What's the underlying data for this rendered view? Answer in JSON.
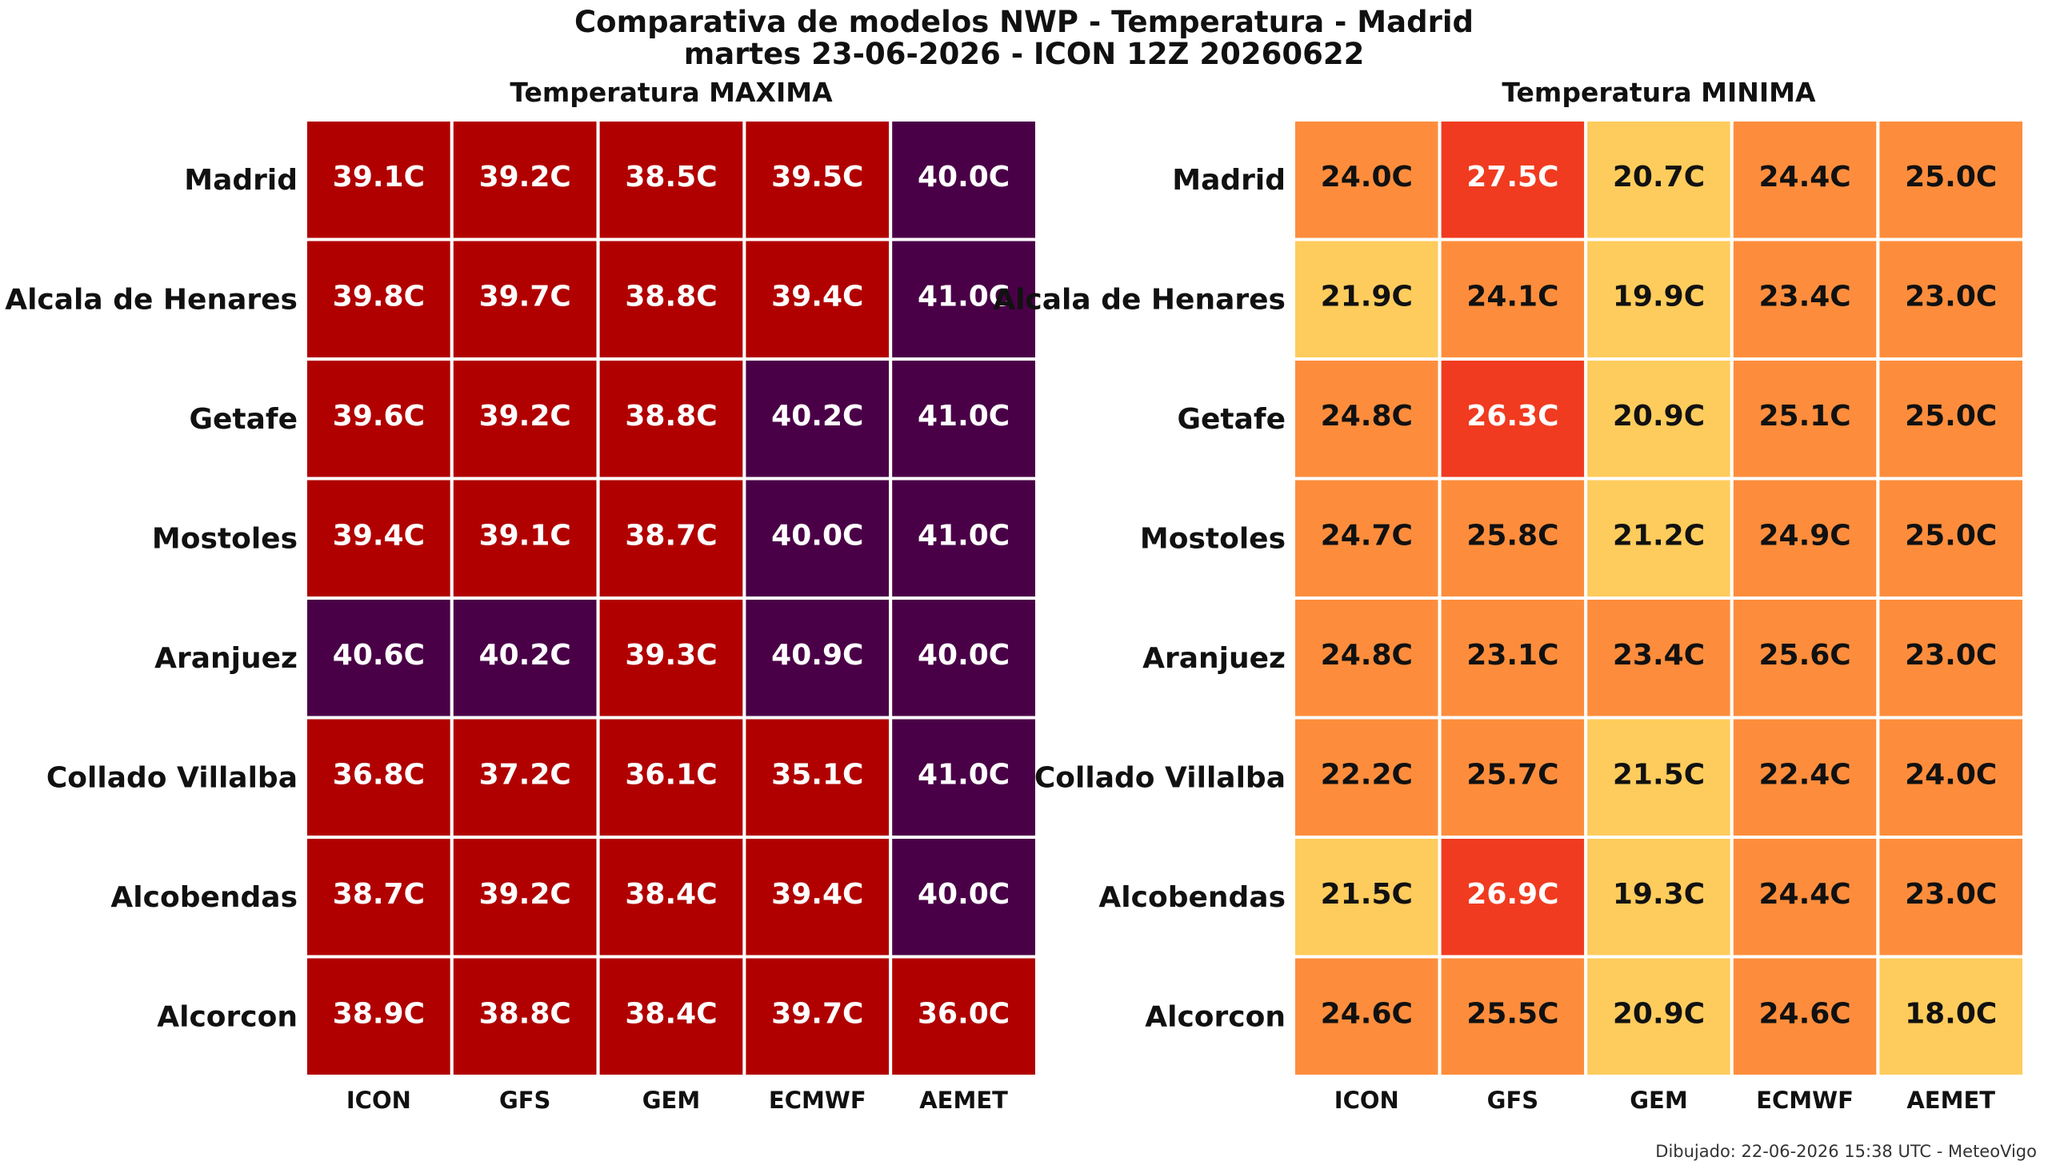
{
  "figure": {
    "title_line1": "Comparativa de modelos NWP - Temperatura - Madrid",
    "title_line2": "martes 23-06-2026 - ICON 12Z 20260622",
    "footer": "Dibujado: 22-06-2026 15:38 UTC - MeteoVigo"
  },
  "chart_data": [
    {
      "type": "heatmap",
      "title": "Temperatura MAXIMA",
      "columns": [
        "ICON",
        "GFS",
        "GEM",
        "ECMWF",
        "AEMET"
      ],
      "rows": [
        "Madrid",
        "Alcala de Henares",
        "Getafe",
        "Mostoles",
        "Aranjuez",
        "Collado Villalba",
        "Alcobendas",
        "Alcorcon"
      ],
      "values": [
        [
          39.1,
          39.2,
          38.5,
          39.5,
          40.0
        ],
        [
          39.8,
          39.7,
          38.8,
          39.4,
          41.0
        ],
        [
          39.6,
          39.2,
          38.8,
          40.2,
          41.0
        ],
        [
          39.4,
          39.1,
          38.7,
          40.0,
          41.0
        ],
        [
          40.6,
          40.2,
          39.3,
          40.9,
          40.0
        ],
        [
          36.8,
          37.2,
          36.1,
          35.1,
          41.0
        ],
        [
          38.7,
          39.2,
          38.4,
          39.4,
          40.0
        ],
        [
          38.9,
          38.8,
          38.4,
          39.7,
          36.0
        ]
      ],
      "unit": "C",
      "color_scale": [
        {
          "min": 18,
          "color": "#fecc5c",
          "text_color": "#111111"
        },
        {
          "min": 22,
          "color": "#fd8d3c",
          "text_color": "#111111"
        },
        {
          "min": 26,
          "color": "#f03b20",
          "text_color": "#ffffff"
        },
        {
          "min": 30,
          "color": "#b10000",
          "text_color": "#ffffff"
        },
        {
          "min": 40,
          "color": "#4a0047",
          "text_color": "#ffffff"
        }
      ]
    },
    {
      "type": "heatmap",
      "title": "Temperatura MINIMA",
      "columns": [
        "ICON",
        "GFS",
        "GEM",
        "ECMWF",
        "AEMET"
      ],
      "rows": [
        "Madrid",
        "Alcala de Henares",
        "Getafe",
        "Mostoles",
        "Aranjuez",
        "Collado Villalba",
        "Alcobendas",
        "Alcorcon"
      ],
      "values": [
        [
          24.0,
          27.5,
          20.7,
          24.4,
          25.0
        ],
        [
          21.9,
          24.1,
          19.9,
          23.4,
          23.0
        ],
        [
          24.8,
          26.3,
          20.9,
          25.1,
          25.0
        ],
        [
          24.7,
          25.8,
          21.2,
          24.9,
          25.0
        ],
        [
          24.8,
          23.1,
          23.4,
          25.6,
          23.0
        ],
        [
          22.2,
          25.7,
          21.5,
          22.4,
          24.0
        ],
        [
          21.5,
          26.9,
          19.3,
          24.4,
          23.0
        ],
        [
          24.6,
          25.5,
          20.9,
          24.6,
          18.0
        ]
      ],
      "unit": "C",
      "color_scale": [
        {
          "min": 18,
          "color": "#fecc5c",
          "text_color": "#111111"
        },
        {
          "min": 22,
          "color": "#fd8d3c",
          "text_color": "#111111"
        },
        {
          "min": 26,
          "color": "#f03b20",
          "text_color": "#ffffff"
        },
        {
          "min": 30,
          "color": "#b10000",
          "text_color": "#ffffff"
        },
        {
          "min": 40,
          "color": "#4a0047",
          "text_color": "#ffffff"
        }
      ]
    }
  ]
}
